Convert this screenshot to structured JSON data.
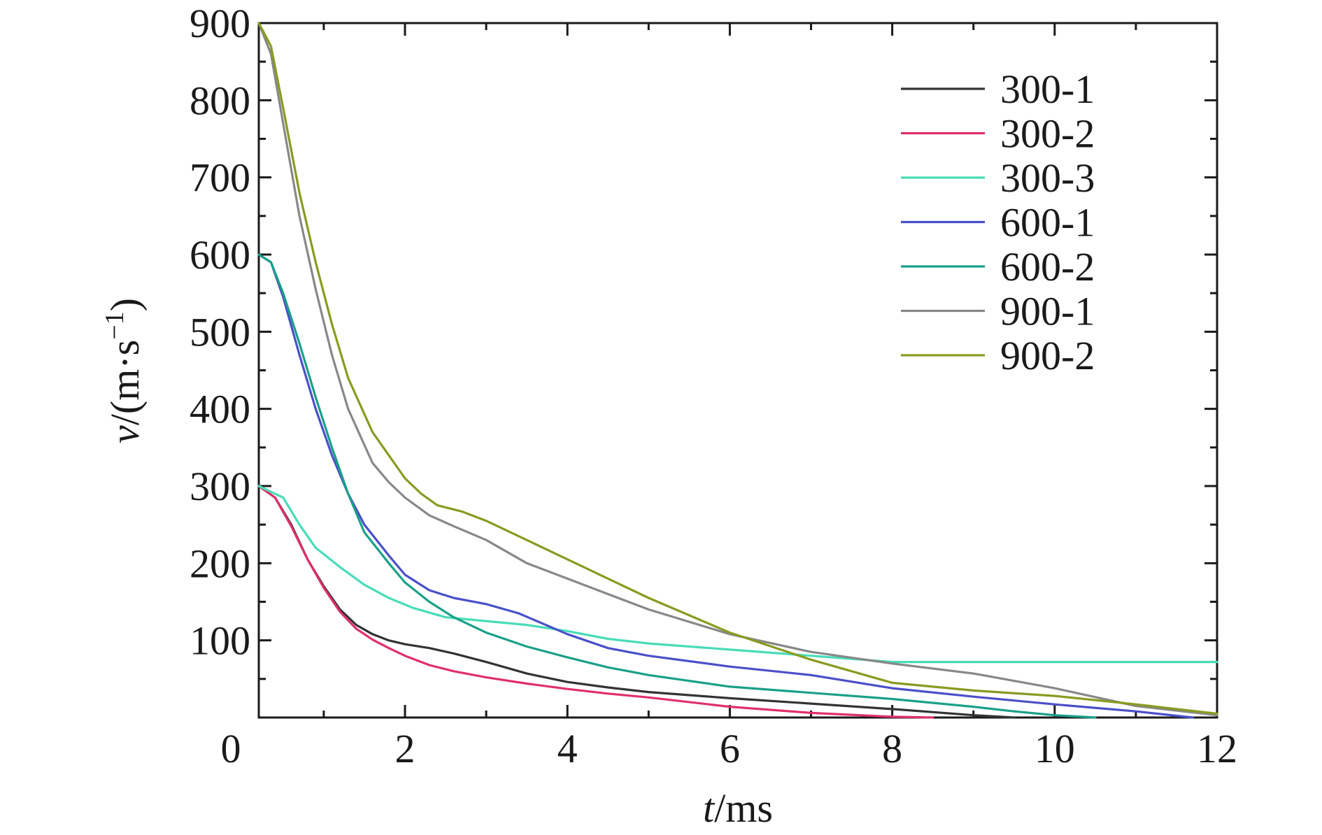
{
  "chart_data": {
    "type": "line",
    "title": "",
    "xlabel": {
      "var": "t",
      "unit": "/ms"
    },
    "ylabel": {
      "var": "v",
      "unit": "/(m·s",
      "sup": "−1",
      "close": ")"
    },
    "xlim": [
      0,
      12
    ],
    "ylim": [
      0,
      900
    ],
    "x_plot_start": 0.2,
    "x_ticks": [
      0,
      2,
      4,
      6,
      8,
      10,
      12
    ],
    "y_ticks": [
      100,
      200,
      300,
      400,
      500,
      600,
      700,
      800,
      900
    ],
    "grid": false,
    "legend_position": "top-right",
    "series": [
      {
        "name": "300-1",
        "color": "#333333",
        "x": [
          0.2,
          0.4,
          0.6,
          0.8,
          1.0,
          1.2,
          1.4,
          1.6,
          1.8,
          2.0,
          2.3,
          2.6,
          3.0,
          3.5,
          4.0,
          4.5,
          5.0,
          6.0,
          7.0,
          8.0,
          9.0,
          9.5
        ],
        "y": [
          300,
          285,
          250,
          205,
          170,
          140,
          120,
          108,
          100,
          95,
          90,
          83,
          72,
          57,
          46,
          39,
          33,
          25,
          18,
          11,
          3,
          0
        ]
      },
      {
        "name": "300-2",
        "color": "#e0306a",
        "x": [
          0.2,
          0.4,
          0.6,
          0.8,
          1.0,
          1.2,
          1.4,
          1.6,
          1.8,
          2.0,
          2.3,
          2.6,
          3.0,
          3.5,
          4.0,
          4.5,
          5.0,
          6.0,
          7.0,
          8.0,
          8.5
        ],
        "y": [
          300,
          285,
          248,
          205,
          168,
          137,
          115,
          101,
          90,
          80,
          68,
          60,
          52,
          44,
          37,
          31,
          26,
          14,
          6,
          1,
          0
        ]
      },
      {
        "name": "300-3",
        "color": "#48dcb8",
        "x": [
          0.2,
          0.5,
          0.7,
          0.9,
          1.2,
          1.5,
          1.8,
          2.1,
          2.5,
          3.0,
          3.5,
          4.0,
          4.5,
          5.0,
          6.0,
          7.0,
          8.0,
          9.0,
          10.0,
          11.0,
          12.0
        ],
        "y": [
          300,
          285,
          250,
          220,
          195,
          172,
          155,
          142,
          130,
          125,
          120,
          112,
          102,
          96,
          88,
          80,
          72,
          72,
          72,
          72,
          72
        ]
      },
      {
        "name": "600-1",
        "color": "#4a50c8",
        "x": [
          0.2,
          0.35,
          0.5,
          0.7,
          0.9,
          1.1,
          1.3,
          1.5,
          1.8,
          2.0,
          2.3,
          2.6,
          3.0,
          3.4,
          4.0,
          4.5,
          5.0,
          6.0,
          7.0,
          8.0,
          9.0,
          10.0,
          11.0,
          11.7
        ],
        "y": [
          600,
          590,
          545,
          470,
          400,
          340,
          290,
          250,
          210,
          185,
          165,
          155,
          147,
          135,
          108,
          90,
          80,
          66,
          55,
          38,
          27,
          17,
          8,
          0
        ]
      },
      {
        "name": "600-2",
        "color": "#1aa088",
        "x": [
          0.2,
          0.35,
          0.5,
          0.7,
          0.9,
          1.1,
          1.3,
          1.5,
          1.8,
          2.0,
          2.3,
          2.6,
          3.0,
          3.5,
          4.0,
          4.5,
          5.0,
          6.0,
          7.0,
          8.0,
          9.0,
          9.5,
          10.0,
          10.5
        ],
        "y": [
          600,
          590,
          550,
          485,
          415,
          350,
          290,
          240,
          200,
          175,
          150,
          130,
          110,
          92,
          78,
          65,
          55,
          40,
          32,
          24,
          14,
          8,
          3,
          0
        ]
      },
      {
        "name": "900-1",
        "color": "#888888",
        "x": [
          0.2,
          0.35,
          0.5,
          0.7,
          0.9,
          1.1,
          1.3,
          1.6,
          1.8,
          2.0,
          2.3,
          2.6,
          3.0,
          3.5,
          4.0,
          4.5,
          5.0,
          6.0,
          7.0,
          8.0,
          9.0,
          10.0,
          11.0,
          12.0
        ],
        "y": [
          900,
          860,
          770,
          650,
          555,
          470,
          400,
          330,
          305,
          285,
          262,
          248,
          230,
          200,
          180,
          160,
          140,
          108,
          85,
          70,
          57,
          38,
          15,
          3
        ]
      },
      {
        "name": "900-2",
        "color": "#8a9a20",
        "x": [
          0.2,
          0.35,
          0.5,
          0.7,
          0.9,
          1.1,
          1.3,
          1.6,
          1.8,
          2.0,
          2.2,
          2.4,
          2.7,
          3.0,
          3.5,
          4.0,
          4.5,
          5.0,
          6.0,
          7.0,
          8.0,
          9.0,
          10.0,
          11.0,
          12.0
        ],
        "y": [
          900,
          870,
          790,
          680,
          590,
          510,
          440,
          370,
          340,
          310,
          290,
          275,
          267,
          255,
          230,
          205,
          180,
          155,
          110,
          75,
          45,
          35,
          28,
          17,
          5
        ]
      }
    ]
  }
}
